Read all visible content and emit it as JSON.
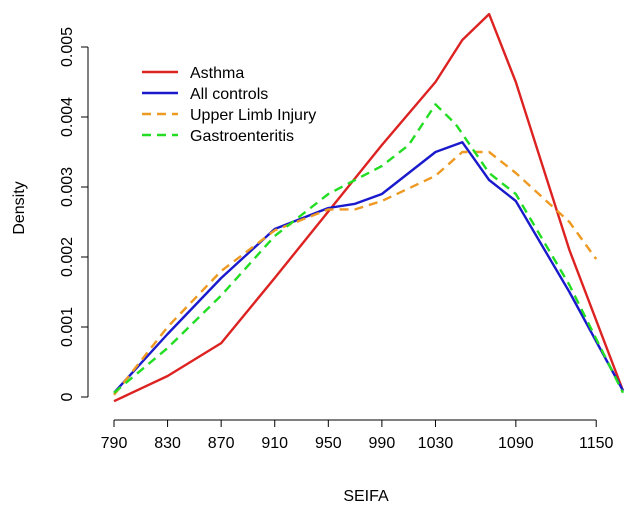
{
  "chart_data": {
    "type": "line",
    "xlabel": "SEIFA",
    "ylabel": "Density",
    "xlim": [
      790,
      1170
    ],
    "ylim": [
      0,
      0.0055
    ],
    "x_ticks": [
      790,
      830,
      870,
      910,
      950,
      990,
      1030,
      1090,
      1150
    ],
    "x_tick_labels": [
      "790",
      "830",
      "870",
      "910",
      "950",
      "990",
      "1030",
      "1090",
      "1150"
    ],
    "y_ticks": [
      0,
      0.001,
      0.002,
      0.003,
      0.004,
      0.005
    ],
    "y_tick_labels": [
      "0",
      "0.001",
      "0.002",
      "0.003",
      "0.004",
      "0.005"
    ],
    "grid": false,
    "legend_position": "top-left",
    "series": [
      {
        "name": "Asthma",
        "color": "#dd2222",
        "dash": "solid",
        "x": [
          790,
          830,
          870,
          910,
          950,
          990,
          1030,
          1050,
          1070,
          1090,
          1130,
          1170
        ],
        "y": [
          -6e-05,
          0.0003,
          0.00077,
          0.0017,
          0.00265,
          0.0036,
          0.0045,
          0.0051,
          0.00547,
          0.0045,
          0.0021,
          9e-05
        ]
      },
      {
        "name": "All controls",
        "color": "#1a1acc",
        "dash": "solid",
        "x": [
          790,
          830,
          870,
          910,
          950,
          970,
          990,
          1010,
          1030,
          1050,
          1070,
          1090,
          1130,
          1170
        ],
        "y": [
          6e-05,
          0.0009,
          0.0017,
          0.0024,
          0.0027,
          0.00276,
          0.0029,
          0.0032,
          0.0035,
          0.00364,
          0.0031,
          0.0028,
          0.0015,
          9e-05
        ]
      },
      {
        "name": "Upper Limb Injury",
        "color": "#ee9922",
        "dash": "dashed",
        "x": [
          790,
          830,
          870,
          910,
          950,
          970,
          990,
          1030,
          1050,
          1070,
          1090,
          1130,
          1150
        ],
        "y": [
          3e-05,
          0.001,
          0.0018,
          0.00238,
          0.00268,
          0.00268,
          0.0028,
          0.00316,
          0.0035,
          0.0035,
          0.0032,
          0.0025,
          0.00197
        ]
      },
      {
        "name": "Gastroenteritis",
        "color": "#22dd22",
        "dash": "dashed",
        "x": [
          790,
          830,
          870,
          910,
          950,
          970,
          990,
          1010,
          1030,
          1045,
          1070,
          1090,
          1130,
          1170
        ],
        "y": [
          6e-05,
          0.0007,
          0.00145,
          0.0023,
          0.0029,
          0.0031,
          0.0033,
          0.0036,
          0.00418,
          0.0039,
          0.0032,
          0.0029,
          0.0016,
          6e-05
        ]
      }
    ]
  }
}
